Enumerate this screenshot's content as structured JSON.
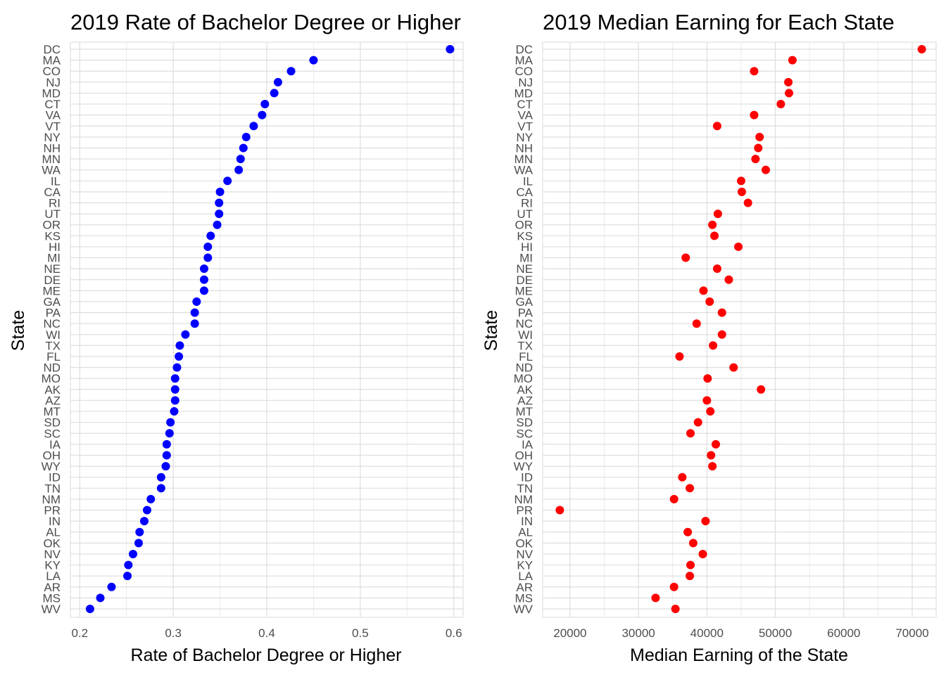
{
  "chart_data": [
    {
      "type": "scatter",
      "title": "2019 Rate of Bachelor Degree or Higher",
      "xlabel": "Rate of Bachelor Degree or Higher",
      "ylabel": "State",
      "xlim": [
        0.19,
        0.61
      ],
      "xticks": [
        {
          "value": 0.2,
          "label": "0.2"
        },
        {
          "value": 0.3,
          "label": "0.3"
        },
        {
          "value": 0.4,
          "label": "0.4"
        },
        {
          "value": 0.5,
          "label": "0.5"
        },
        {
          "value": 0.6,
          "label": "0.6"
        }
      ],
      "grid": true,
      "point_color": "#0000ff",
      "states": [
        "DC",
        "MA",
        "CO",
        "NJ",
        "MD",
        "CT",
        "VA",
        "VT",
        "NY",
        "NH",
        "MN",
        "WA",
        "IL",
        "CA",
        "RI",
        "UT",
        "OR",
        "KS",
        "HI",
        "MI",
        "NE",
        "DE",
        "ME",
        "GA",
        "PA",
        "NC",
        "WI",
        "TX",
        "FL",
        "ND",
        "MO",
        "AK",
        "AZ",
        "MT",
        "SD",
        "SC",
        "IA",
        "OH",
        "WY",
        "ID",
        "TN",
        "NM",
        "PR",
        "IN",
        "AL",
        "OK",
        "NV",
        "KY",
        "LA",
        "AR",
        "MS",
        "WV"
      ],
      "values": [
        0.596,
        0.45,
        0.426,
        0.412,
        0.408,
        0.398,
        0.395,
        0.386,
        0.378,
        0.375,
        0.372,
        0.37,
        0.358,
        0.35,
        0.349,
        0.349,
        0.347,
        0.34,
        0.337,
        0.337,
        0.333,
        0.333,
        0.333,
        0.325,
        0.323,
        0.323,
        0.313,
        0.307,
        0.306,
        0.304,
        0.302,
        0.302,
        0.302,
        0.301,
        0.297,
        0.296,
        0.293,
        0.293,
        0.292,
        0.287,
        0.287,
        0.276,
        0.272,
        0.269,
        0.264,
        0.263,
        0.257,
        0.252,
        0.251,
        0.234,
        0.222,
        0.211
      ]
    },
    {
      "type": "scatter",
      "title": "2019 Median Earning for Each State",
      "xlabel": "Median Earning of the State",
      "ylabel": "State",
      "xlim": [
        16000,
        73500
      ],
      "xticks": [
        {
          "value": 20000,
          "label": "20000"
        },
        {
          "value": 30000,
          "label": "30000"
        },
        {
          "value": 40000,
          "label": "40000"
        },
        {
          "value": 50000,
          "label": "50000"
        },
        {
          "value": 60000,
          "label": "60000"
        },
        {
          "value": 70000,
          "label": "70000"
        }
      ],
      "grid": true,
      "point_color": "#ff0000",
      "states": [
        "DC",
        "MA",
        "CO",
        "NJ",
        "MD",
        "CT",
        "VA",
        "VT",
        "NY",
        "NH",
        "MN",
        "WA",
        "IL",
        "CA",
        "RI",
        "UT",
        "OR",
        "KS",
        "HI",
        "MI",
        "NE",
        "DE",
        "ME",
        "GA",
        "PA",
        "NC",
        "WI",
        "TX",
        "FL",
        "ND",
        "MO",
        "AK",
        "AZ",
        "MT",
        "SD",
        "SC",
        "IA",
        "OH",
        "WY",
        "ID",
        "TN",
        "NM",
        "PR",
        "IN",
        "AL",
        "OK",
        "NV",
        "KY",
        "LA",
        "AR",
        "MS",
        "WV"
      ],
      "values": [
        71400,
        52500,
        46900,
        51900,
        52000,
        50800,
        46900,
        41500,
        47700,
        47500,
        47100,
        48600,
        45000,
        45100,
        46000,
        41600,
        40800,
        41100,
        44600,
        36900,
        41500,
        43200,
        39500,
        40400,
        42200,
        38500,
        42200,
        40900,
        36000,
        43900,
        40100,
        47900,
        40000,
        40500,
        38700,
        37600,
        41300,
        40600,
        40800,
        36400,
        37500,
        35200,
        18500,
        39800,
        37200,
        38000,
        39400,
        37600,
        37500,
        35200,
        32500,
        35400
      ]
    }
  ]
}
